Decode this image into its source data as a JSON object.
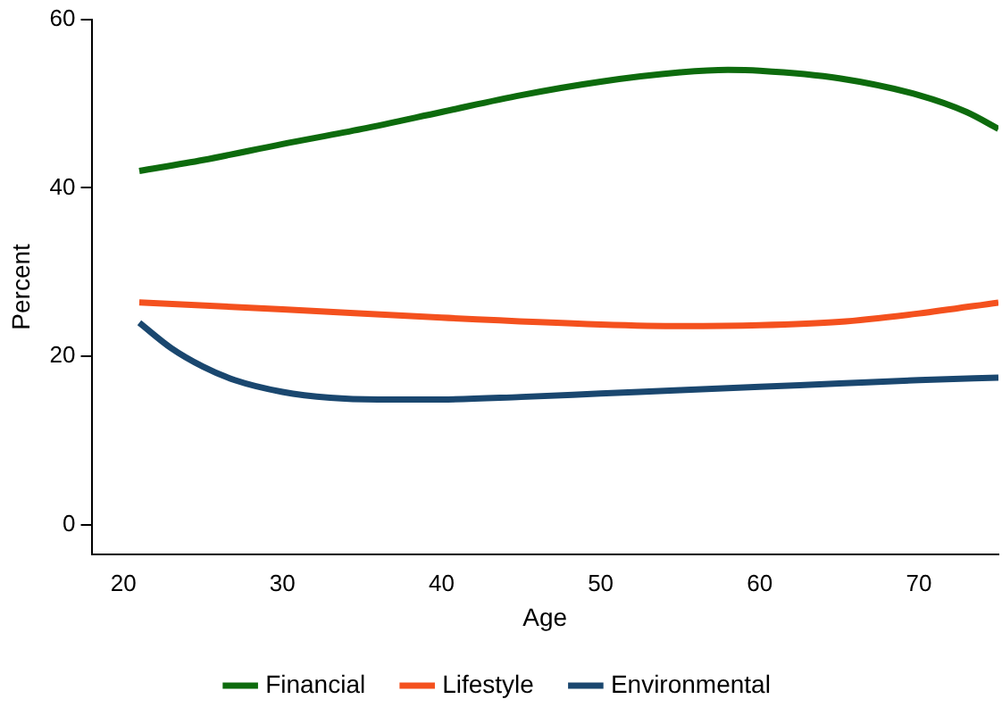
{
  "chart_data": {
    "type": "line",
    "xlabel": "Age",
    "ylabel": "Percent",
    "xlim": [
      18,
      75
    ],
    "xticks": [
      20,
      30,
      40,
      50,
      60,
      70
    ],
    "ylim": [
      -3.5,
      60
    ],
    "yticks": [
      0,
      20,
      40,
      60
    ],
    "grid": false,
    "legend": "bottom",
    "marker": "none",
    "line_style": "solid",
    "series": [
      {
        "name": "Financial",
        "color": "#0d6b0d",
        "x": [
          21,
          25,
          30,
          35,
          40,
          45,
          50,
          55,
          58,
          60,
          65,
          70,
          73,
          75
        ],
        "values": [
          42,
          43.3,
          45.2,
          47,
          49,
          51,
          52.6,
          53.7,
          54,
          53.9,
          53,
          51,
          49,
          47
        ]
      },
      {
        "name": "Lifestyle",
        "color": "#f4511e",
        "x": [
          21,
          30,
          40,
          50,
          55,
          60,
          65,
          70,
          75
        ],
        "values": [
          26.4,
          25.6,
          24.6,
          23.8,
          23.6,
          23.7,
          24.1,
          25.1,
          26.4
        ]
      },
      {
        "name": "Environmental",
        "color": "#1a476f",
        "x": [
          21,
          23,
          25,
          27,
          30,
          33,
          36,
          40,
          45,
          50,
          55,
          60,
          65,
          70,
          75
        ],
        "values": [
          24,
          21,
          18.8,
          17.2,
          15.8,
          15.1,
          14.9,
          14.9,
          15.2,
          15.6,
          16,
          16.4,
          16.8,
          17.2,
          17.5
        ]
      }
    ]
  }
}
